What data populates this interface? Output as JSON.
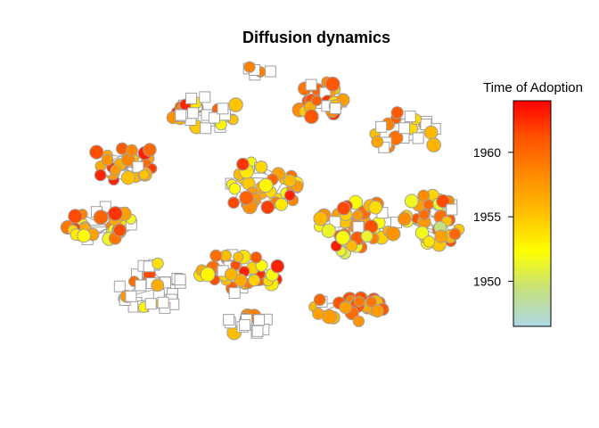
{
  "chart_data": {
    "type": "scatter",
    "title": "Diffusion dynamics",
    "legend": {
      "title": "Time of Adoption",
      "placement": "right",
      "range": [
        1946.5,
        1964.0
      ],
      "ticks": [
        1950,
        1955,
        1960
      ],
      "tick_labels": [
        "1950",
        "1955",
        "1960"
      ],
      "colors": [
        "#add8e6",
        "#c6e17c",
        "#ffff00",
        "#ffc000",
        "#ff8c00",
        "#ff5500",
        "#ff0000"
      ]
    },
    "node_style": {
      "adopter": "circle",
      "non_adopter": "square",
      "non_adopter_color": "#ffffff",
      "border_color": "#a0a0a0",
      "edge_color": "#a0a0a0"
    }
  }
}
